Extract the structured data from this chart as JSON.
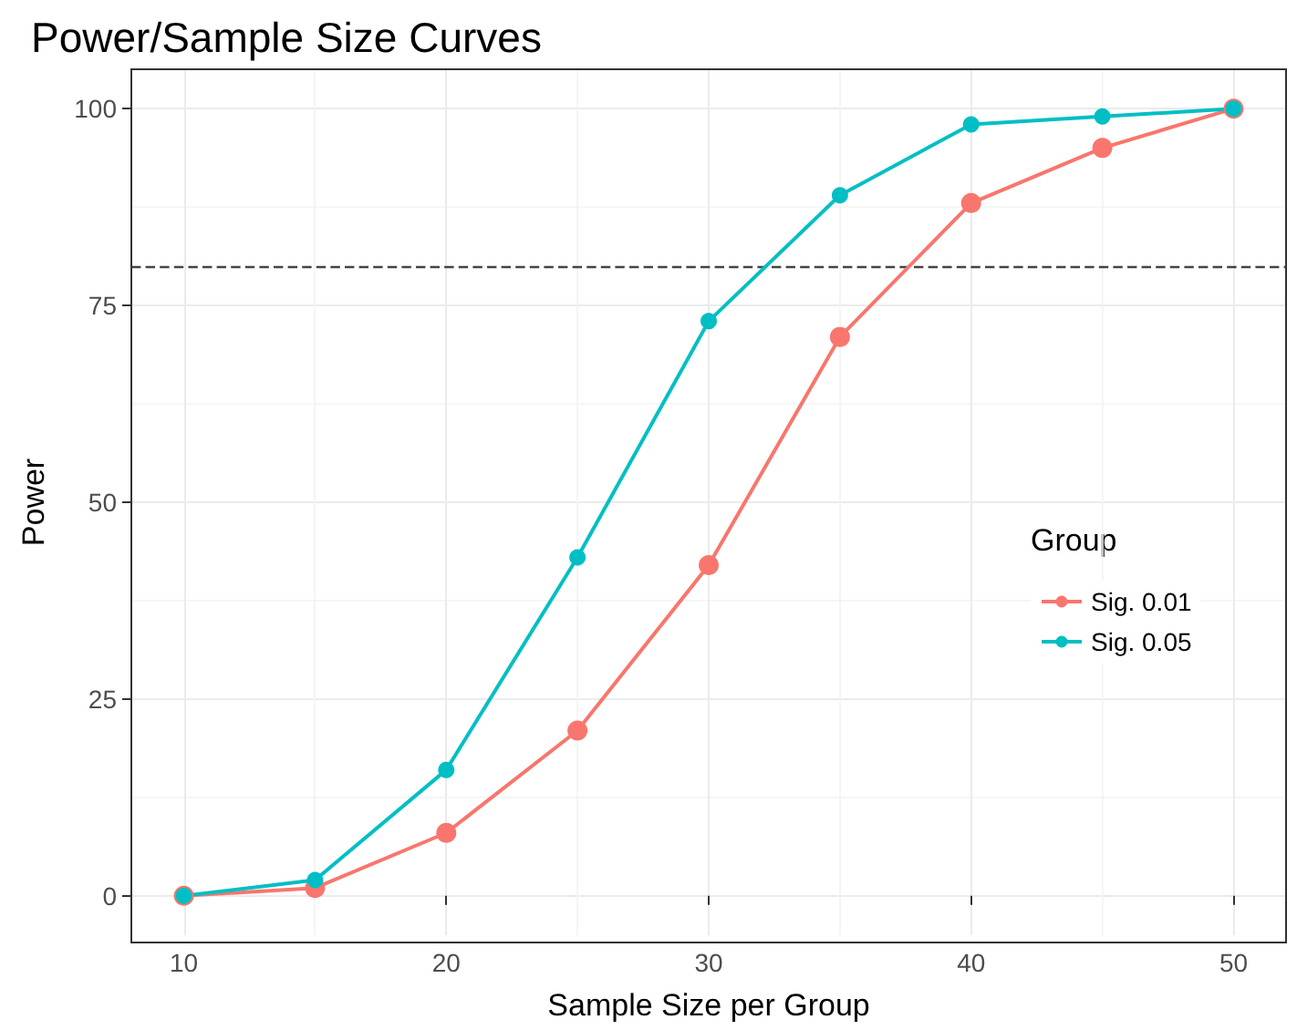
{
  "chart_data": {
    "type": "line",
    "title": "Power/Sample Size Curves",
    "xlabel": "Sample Size per Group",
    "ylabel": "Power",
    "legend_title": "Group",
    "x": [
      10,
      15,
      20,
      25,
      30,
      35,
      40,
      45,
      50
    ],
    "series": [
      {
        "name": "Sig. 0.01",
        "color": "#f8766d",
        "values": [
          0,
          1,
          8,
          21,
          42,
          71,
          88,
          95,
          100
        ]
      },
      {
        "name": "Sig. 0.05",
        "color": "#00bfc4",
        "values": [
          0,
          2,
          16,
          43,
          73,
          89,
          98,
          99,
          100
        ]
      }
    ],
    "xlim": [
      8,
      52
    ],
    "xticks": [
      10,
      20,
      30,
      40,
      50
    ],
    "ylim": [
      -5,
      105
    ],
    "yticks": [
      0,
      25,
      50,
      75,
      100
    ],
    "ref_lines": [
      {
        "axis": "y",
        "value": 80,
        "color": "#444444",
        "line_style": "dashed"
      }
    ],
    "grid": true,
    "legend": "right",
    "marker": "circle",
    "line_style": "solid"
  }
}
